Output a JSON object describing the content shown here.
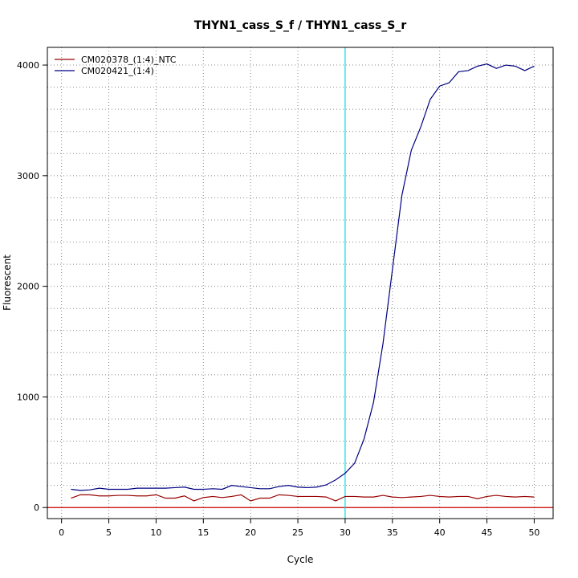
{
  "chart_data": {
    "type": "line",
    "title": "THYN1_cass_S_f / THYN1_cass_S_r",
    "xlabel": "Cycle",
    "ylabel": "Fluorescent",
    "xlim": [
      -1.5,
      52
    ],
    "ylim": [
      -100,
      4160
    ],
    "x_ticks": [
      0,
      5,
      10,
      15,
      20,
      25,
      30,
      35,
      40,
      45,
      50
    ],
    "y_ticks": [
      0,
      1000,
      2000,
      3000,
      4000
    ],
    "x_grid": [
      0,
      5,
      10,
      15,
      20,
      25,
      30,
      35,
      40,
      45,
      50
    ],
    "y_grid": [
      0,
      200,
      400,
      600,
      800,
      1000,
      1200,
      1400,
      1600,
      1800,
      2000,
      2200,
      2400,
      2600,
      2800,
      3000,
      3200,
      3400,
      3600,
      3800,
      4000
    ],
    "grid": true,
    "legend_position": "top-left",
    "threshold_cycle": 30,
    "threshold_color": "#00dede",
    "baseline_value": 0,
    "baseline_color": "#cc0000",
    "x": [
      1,
      2,
      3,
      4,
      5,
      6,
      7,
      8,
      9,
      10,
      11,
      12,
      13,
      14,
      15,
      16,
      17,
      18,
      19,
      20,
      21,
      22,
      23,
      24,
      25,
      26,
      27,
      28,
      29,
      30,
      31,
      32,
      33,
      34,
      35,
      36,
      37,
      38,
      39,
      40,
      41,
      42,
      43,
      44,
      45,
      46,
      47,
      48,
      49,
      50
    ],
    "series": [
      {
        "name": "CM020378_(1:4)_NTC",
        "color": "#990000",
        "values": [
          85,
          115,
          115,
          105,
          105,
          110,
          110,
          105,
          105,
          115,
          85,
          85,
          105,
          60,
          90,
          100,
          90,
          100,
          115,
          60,
          85,
          85,
          115,
          110,
          100,
          100,
          100,
          95,
          60,
          100,
          100,
          95,
          95,
          110,
          95,
          90,
          95,
          100,
          110,
          100,
          95,
          100,
          100,
          80,
          100,
          110,
          100,
          95,
          100,
          95
        ]
      },
      {
        "name": "CM020421_(1:4)",
        "color": "#000080",
        "values": [
          165,
          155,
          160,
          175,
          165,
          165,
          165,
          175,
          175,
          175,
          175,
          180,
          185,
          165,
          165,
          170,
          165,
          200,
          190,
          180,
          170,
          170,
          190,
          200,
          185,
          180,
          185,
          205,
          250,
          310,
          400,
          620,
          950,
          1480,
          2150,
          2820,
          3230,
          3440,
          3690,
          3810,
          3840,
          3940,
          3950,
          3990,
          4010,
          3970,
          4000,
          3990,
          3950,
          3990
        ]
      }
    ]
  }
}
